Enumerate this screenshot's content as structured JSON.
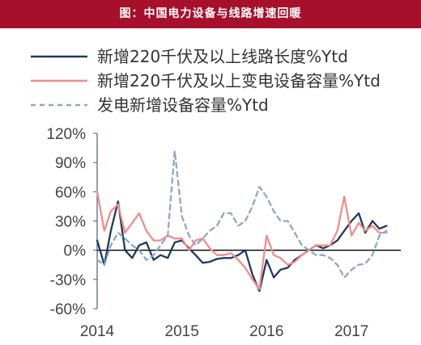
{
  "header": {
    "title": "图：中国电力设备与线路增速回暖",
    "bg_color": "#a6102a"
  },
  "colors": {
    "series1": "#1f3a5f",
    "series2": "#f28c8c",
    "series3": "#8fa6c2",
    "axis": "#4a5f7a"
  },
  "chart_data": {
    "type": "line",
    "title": "",
    "xlabel": "",
    "ylabel": "",
    "x_tick_labels": [
      "2014",
      "2015",
      "2016",
      "2017"
    ],
    "y_ticks": [
      120,
      90,
      60,
      30,
      0,
      -30,
      -60
    ],
    "y_tick_labels": [
      "120%",
      "90%",
      "60%",
      "30%",
      "0%",
      "-30%",
      "-60%"
    ],
    "ylim": [
      -60,
      120
    ],
    "grid": false,
    "legend_position": "top",
    "x": [
      "2014-01",
      "2014-02",
      "2014-03",
      "2014-04",
      "2014-05",
      "2014-06",
      "2014-07",
      "2014-08",
      "2014-09",
      "2014-10",
      "2014-11",
      "2014-12",
      "2015-01",
      "2015-02",
      "2015-03",
      "2015-04",
      "2015-05",
      "2015-06",
      "2015-07",
      "2015-08",
      "2015-09",
      "2015-10",
      "2015-11",
      "2015-12",
      "2016-01",
      "2016-02",
      "2016-03",
      "2016-04",
      "2016-05",
      "2016-06",
      "2016-07",
      "2016-08",
      "2016-09",
      "2016-10",
      "2016-11",
      "2016-12",
      "2017-01",
      "2017-02",
      "2017-03",
      "2017-04",
      "2017-05",
      "2017-06",
      "2017-07",
      "2017-08"
    ],
    "series": [
      {
        "name": "新增220千伏及以上线路长度%Ytd",
        "color": "#1f3a5f",
        "dash": "solid",
        "values": [
          10,
          -15,
          20,
          50,
          0,
          -8,
          5,
          8,
          -10,
          -5,
          -8,
          8,
          10,
          2,
          -5,
          -13,
          -12,
          -9,
          -8,
          -8,
          -5,
          0,
          -25,
          -42,
          -10,
          -28,
          -20,
          -18,
          -10,
          -5,
          0,
          5,
          2,
          5,
          10,
          20,
          30,
          38,
          18,
          30,
          22,
          25,
          null,
          null
        ]
      },
      {
        "name": "新增220千伏及以上变电设备容量%Ytd",
        "color": "#f28c8c",
        "dash": "solid",
        "values": [
          60,
          20,
          40,
          47,
          18,
          28,
          38,
          20,
          10,
          10,
          15,
          12,
          12,
          0,
          10,
          12,
          2,
          -5,
          -5,
          -3,
          -10,
          -18,
          -30,
          -40,
          15,
          -5,
          -8,
          -15,
          -12,
          -5,
          0,
          5,
          5,
          5,
          20,
          55,
          15,
          28,
          20,
          25,
          18,
          18,
          null,
          null
        ]
      },
      {
        "name": "发电新增设备容量%Ytd",
        "color": "#8fa6c2",
        "dash": "dashed",
        "values": [
          -10,
          -15,
          5,
          18,
          12,
          5,
          0,
          -10,
          -5,
          5,
          15,
          102,
          35,
          15,
          5,
          12,
          20,
          25,
          38,
          38,
          25,
          30,
          45,
          65,
          55,
          40,
          30,
          30,
          18,
          5,
          0,
          -5,
          -5,
          -8,
          -15,
          -28,
          -20,
          -15,
          -14,
          -5,
          15,
          20,
          null,
          null
        ]
      }
    ]
  }
}
